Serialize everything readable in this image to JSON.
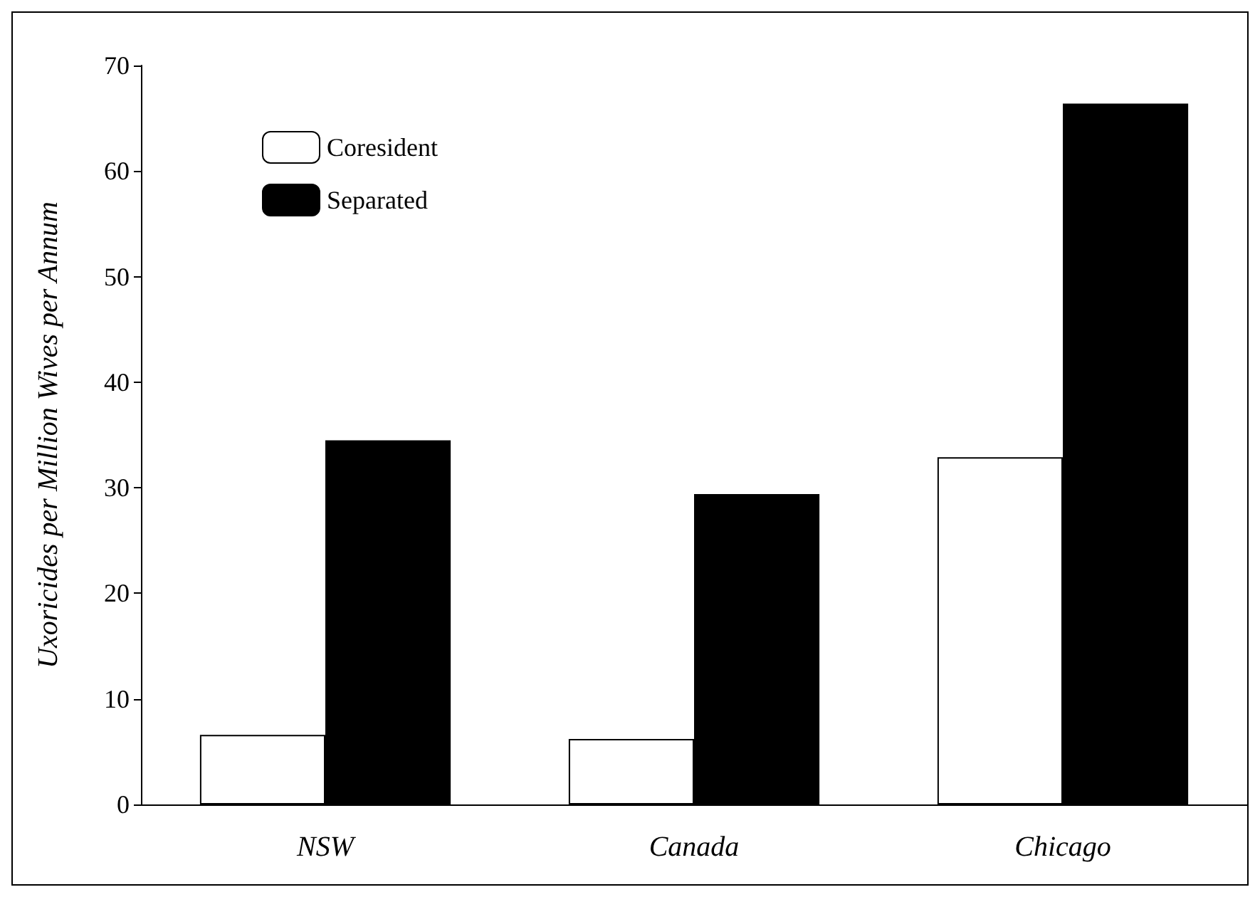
{
  "chart_data": {
    "type": "bar",
    "ylabel": "Uxoricides per Million Wives per Annum",
    "categories": [
      "NSW",
      "Canada",
      "Chicago"
    ],
    "series": [
      {
        "name": "Coresident",
        "color": "#ffffff",
        "values": [
          6.6,
          6.2,
          32.9
        ]
      },
      {
        "name": "Separated",
        "color": "#000000",
        "values": [
          34.5,
          29.4,
          66.4
        ]
      }
    ],
    "ylim": [
      0,
      70
    ],
    "yticks": [
      0,
      10,
      20,
      30,
      40,
      50,
      60,
      70
    ],
    "grid": false,
    "legend": "top left"
  }
}
